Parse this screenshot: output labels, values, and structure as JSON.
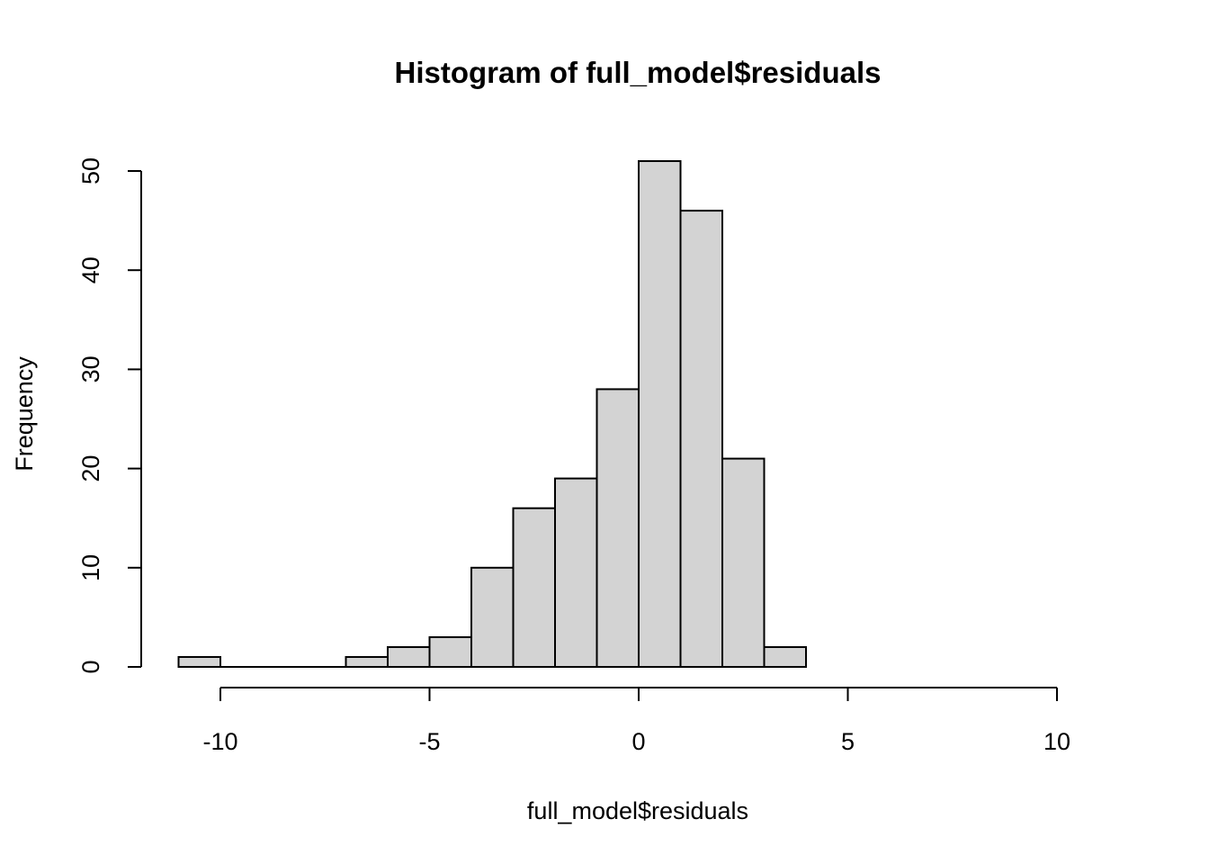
{
  "chart_data": {
    "type": "bar",
    "title": "Histogram of full_model$residuals",
    "xlabel": "full_model$residuals",
    "ylabel": "Frequency",
    "bins": [
      {
        "x0": -11,
        "x1": -10,
        "count": 1
      },
      {
        "x0": -10,
        "x1": -9,
        "count": 0
      },
      {
        "x0": -9,
        "x1": -8,
        "count": 0
      },
      {
        "x0": -8,
        "x1": -7,
        "count": 0
      },
      {
        "x0": -7,
        "x1": -6,
        "count": 1
      },
      {
        "x0": -6,
        "x1": -5,
        "count": 2
      },
      {
        "x0": -5,
        "x1": -4,
        "count": 3
      },
      {
        "x0": -4,
        "x1": -3,
        "count": 10
      },
      {
        "x0": -3,
        "x1": -2,
        "count": 16
      },
      {
        "x0": -2,
        "x1": -1,
        "count": 19
      },
      {
        "x0": -1,
        "x1": 0,
        "count": 28
      },
      {
        "x0": 0,
        "x1": 1,
        "count": 51
      },
      {
        "x0": 1,
        "x1": 2,
        "count": 46
      },
      {
        "x0": 2,
        "x1": 3,
        "count": 21
      },
      {
        "x0": 3,
        "x1": 4,
        "count": 2
      }
    ],
    "xlim": [
      -11,
      11
    ],
    "ylim": [
      0,
      51
    ],
    "x_ticks": [
      -10,
      -5,
      0,
      5,
      10
    ],
    "x_tick_labels": [
      "-10",
      "-5",
      "0",
      "5",
      "10"
    ],
    "y_ticks": [
      0,
      10,
      20,
      30,
      40,
      50
    ],
    "y_tick_labels": [
      "0",
      "10",
      "20",
      "30",
      "40",
      "50"
    ],
    "grid": false,
    "bar_color": "#d3d3d3",
    "edge_color": "#000000"
  }
}
